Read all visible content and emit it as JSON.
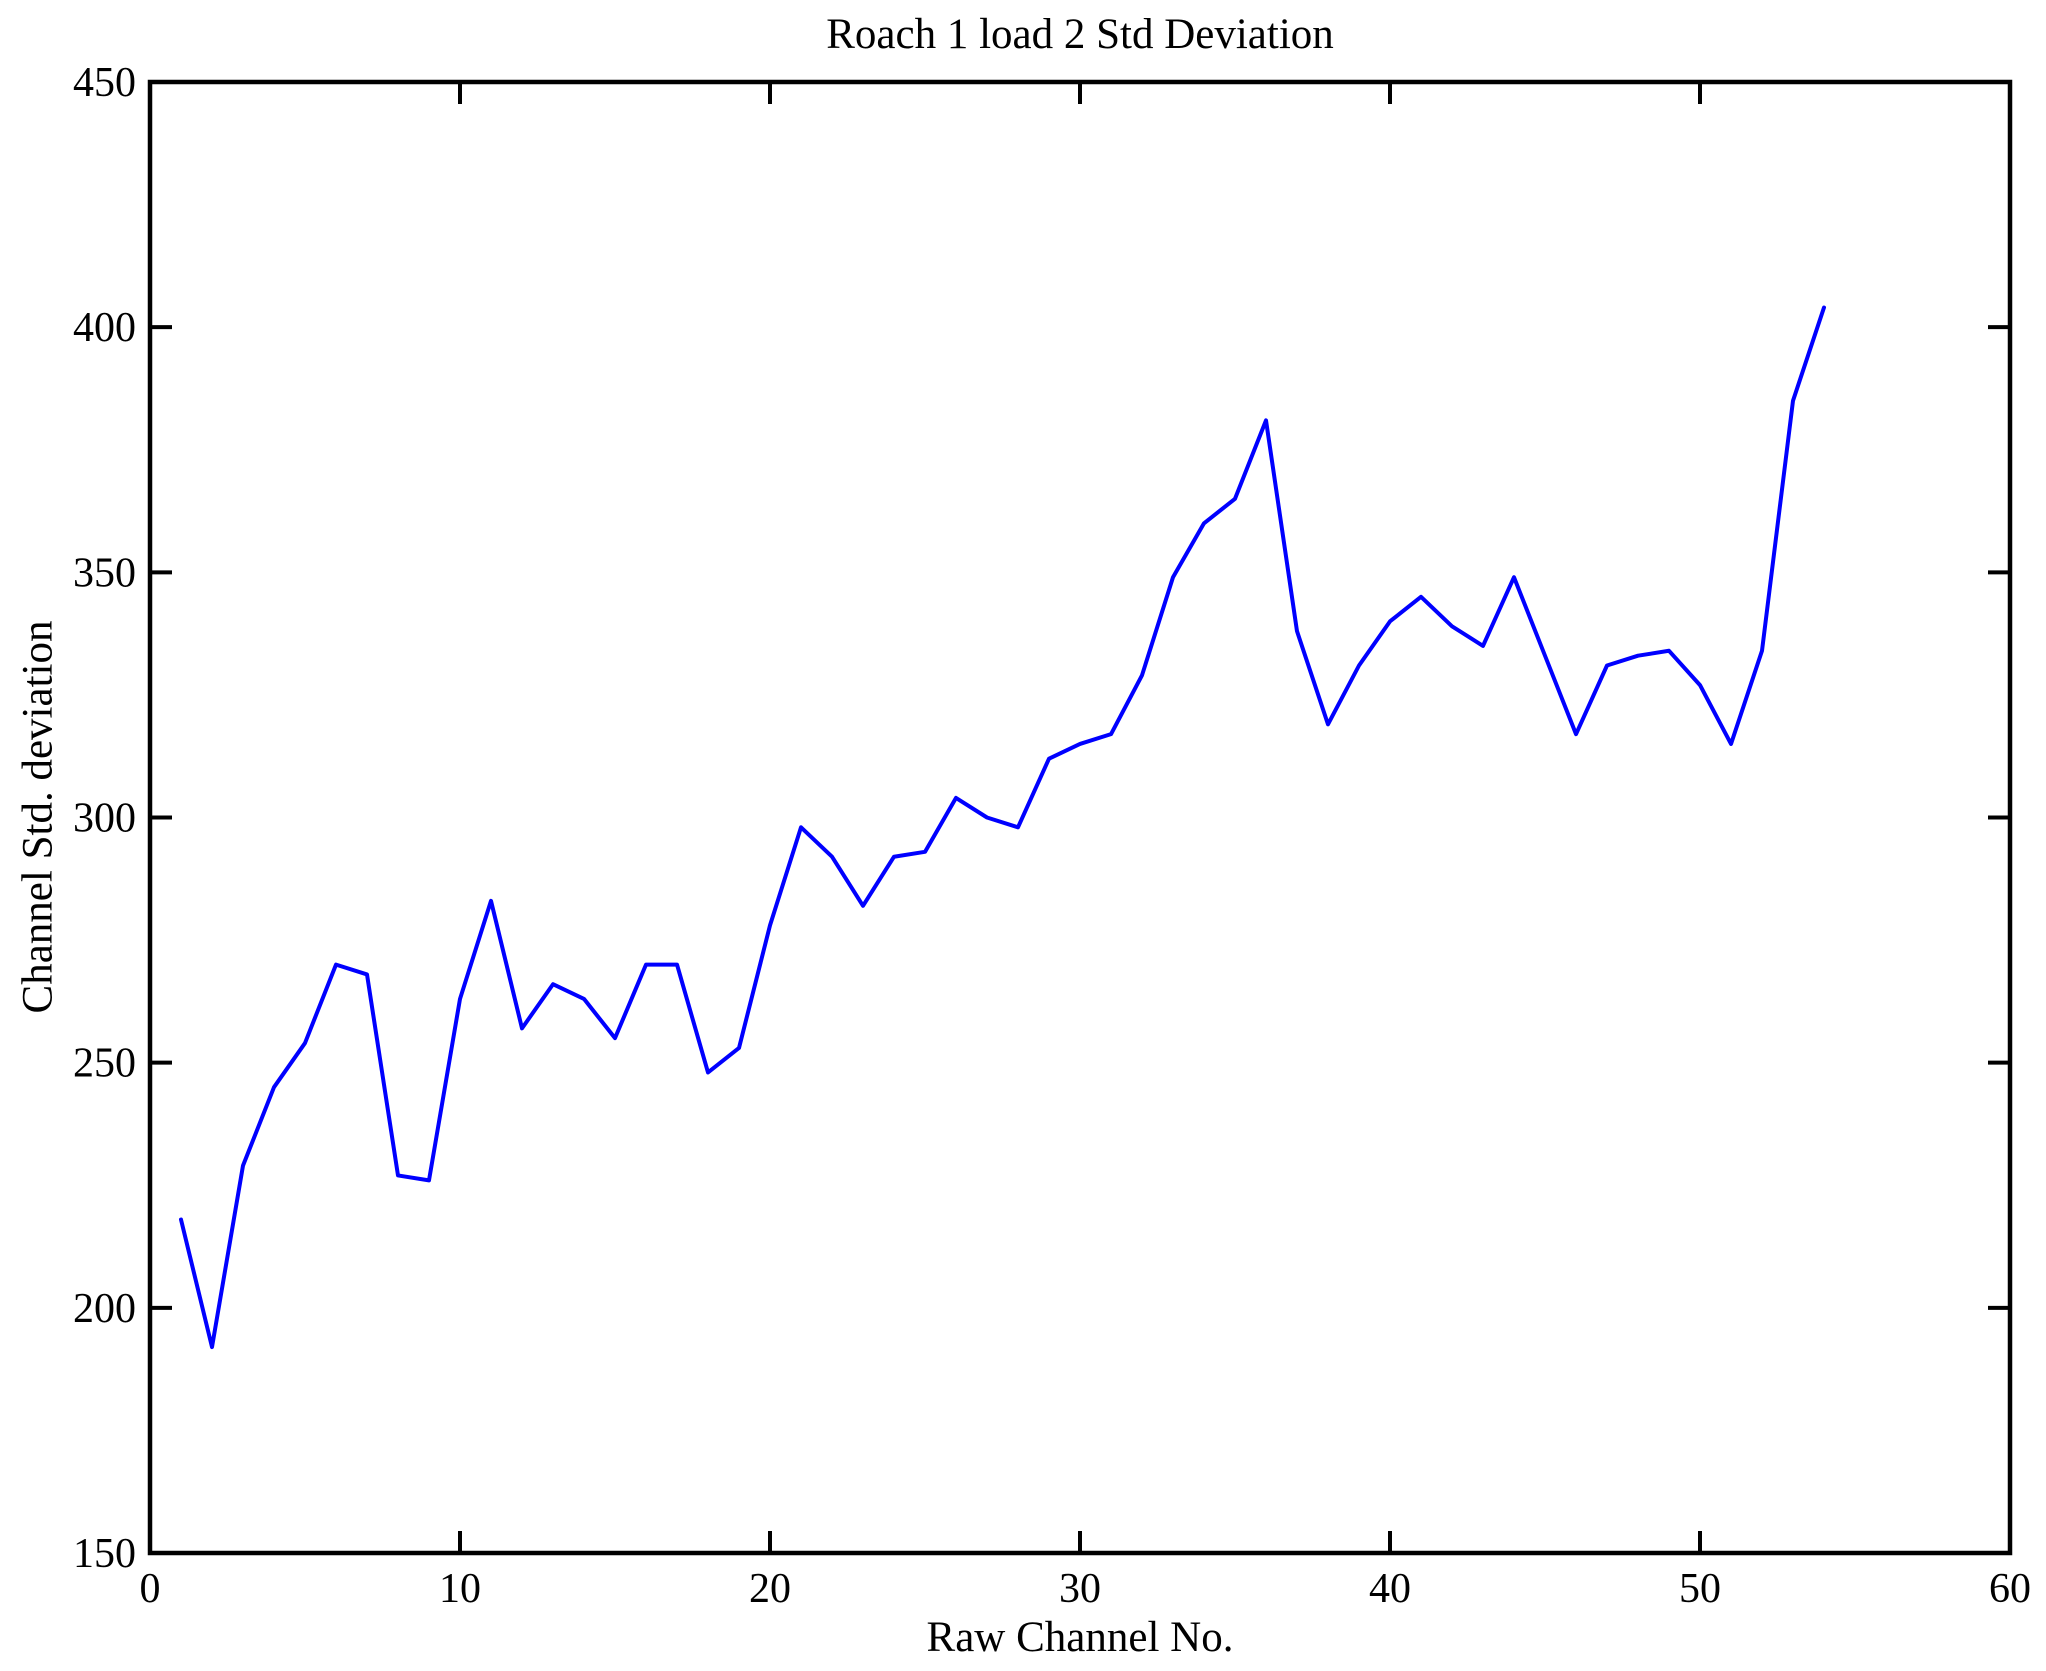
{
  "figure": {
    "background_color": "#FFFFFF"
  },
  "chart_data": {
    "type": "line",
    "title": "Roach 1 load 2 Std Deviation",
    "xlabel": "Raw Channel No.",
    "ylabel": "Channel Std. deviation",
    "series_name": "channel-std-deviation",
    "line_color": "#0000FF",
    "axis_color": "#000000",
    "grid": false,
    "legend_position": "none",
    "xlim": [
      0,
      60
    ],
    "ylim": [
      150,
      450
    ],
    "xticks": [
      0,
      10,
      20,
      30,
      40,
      50,
      60
    ],
    "yticks": [
      150,
      200,
      250,
      300,
      350,
      400,
      450
    ],
    "x": [
      1,
      2,
      3,
      4,
      5,
      6,
      7,
      8,
      9,
      10,
      11,
      12,
      13,
      14,
      15,
      16,
      17,
      18,
      19,
      20,
      21,
      22,
      23,
      24,
      25,
      26,
      27,
      28,
      29,
      30,
      31,
      32,
      33,
      34,
      35,
      36,
      37,
      38,
      39,
      40,
      41,
      42,
      43,
      44,
      45,
      46,
      47,
      48,
      49,
      50,
      51,
      52,
      53,
      54
    ],
    "values": [
      218,
      192,
      229,
      245,
      254,
      270,
      268,
      227,
      226,
      263,
      283,
      257,
      266,
      263,
      255,
      270,
      270,
      248,
      253,
      278,
      298,
      292,
      282,
      292,
      293,
      304,
      300,
      298,
      312,
      315,
      317,
      329,
      349,
      360,
      365,
      381,
      338,
      319,
      331,
      340,
      345,
      339,
      335,
      349,
      333,
      317,
      331,
      333,
      334,
      327,
      315,
      334,
      385,
      404
    ]
  }
}
